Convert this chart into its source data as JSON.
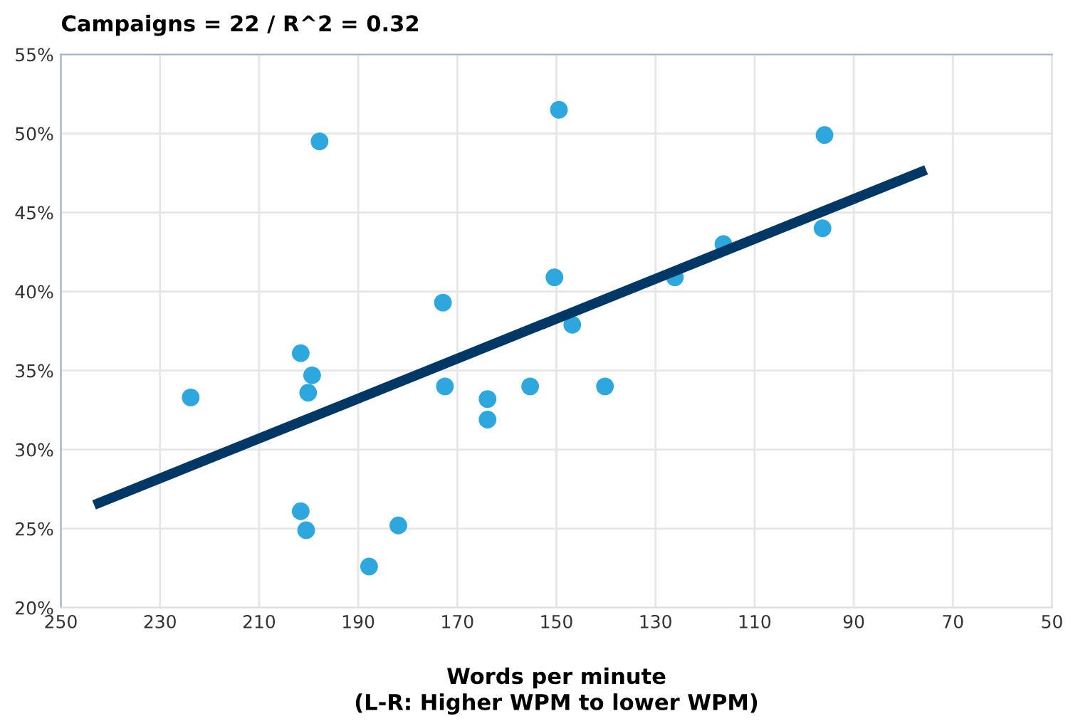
{
  "chart_data": {
    "type": "scatter",
    "title": "Campaigns = 22 / R^2 = 0.32",
    "xlabel": "Words per minute\n(L-R: Higher WPM to lower WPM)",
    "xlim": [
      250,
      50
    ],
    "xticks": [
      250,
      230,
      210,
      190,
      170,
      150,
      130,
      110,
      90,
      70,
      50
    ],
    "ylim": [
      20,
      55
    ],
    "yticks": [
      {
        "value": 20,
        "label": "20%"
      },
      {
        "value": 25,
        "label": "25%"
      },
      {
        "value": 30,
        "label": "30%"
      },
      {
        "value": 35,
        "label": "35%"
      },
      {
        "value": 40,
        "label": "40%"
      },
      {
        "value": 45,
        "label": "45%"
      },
      {
        "value": 50,
        "label": "50%"
      },
      {
        "value": 55,
        "label": "55%"
      }
    ],
    "grid": true,
    "series": [
      {
        "marker": "circle",
        "color": "#2ea8dc",
        "x": [
          197.8,
          149.5,
          150.4,
          172.9,
          201.6,
          199.3,
          200.1,
          223.8,
          172.5,
          163.9,
          163.9,
          155.3,
          201.6,
          200.5,
          181.9,
          187.8,
          146.8,
          140.2,
          126.1,
          116.3,
          95.9,
          96.3
        ],
        "values": [
          49.5,
          51.5,
          40.9,
          39.3,
          36.1,
          34.7,
          33.6,
          33.3,
          34.0,
          33.2,
          31.9,
          34.0,
          26.1,
          24.9,
          25.2,
          22.6,
          37.9,
          34.0,
          40.9,
          43.0,
          49.9,
          44.0
        ]
      },
      {
        "type": "line",
        "color": "#003865",
        "x": [
          243.3,
          75.4
        ],
        "values": [
          26.5,
          47.7
        ]
      }
    ]
  }
}
